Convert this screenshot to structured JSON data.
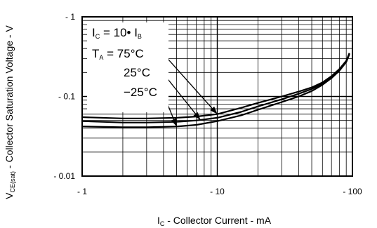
{
  "chart_data": {
    "type": "line",
    "x_scale": "log",
    "y_scale": "log",
    "xlim": [
      -1,
      -100
    ],
    "ylim": [
      -0.01,
      -1
    ],
    "grid": true,
    "x_ticks": [
      {
        "value": -1,
        "label": "- 1"
      },
      {
        "value": -10,
        "label": "- 10"
      },
      {
        "value": -100,
        "label": "- 100"
      }
    ],
    "y_ticks": [
      {
        "value": -1,
        "label": "- 1"
      },
      {
        "value": -0.1,
        "label": "- 0.1"
      },
      {
        "value": -0.01,
        "label": "- 0.01"
      }
    ],
    "xlabel": {
      "pre": "I",
      "sub": "C",
      "post": " - Collector Current - mA"
    },
    "ylabel": {
      "pre": "V",
      "sub": "CE(sat)",
      "post": " - Collector Saturation Voltage - V"
    },
    "annotations": {
      "condition": {
        "pre": "I",
        "sub1": "C",
        "mid": " = 10• I",
        "sub2": "B"
      },
      "ta_prefix": {
        "pre": "T",
        "sub": "A",
        "post": " = "
      }
    },
    "series": [
      {
        "name": "75°C",
        "x": [
          -1,
          -2,
          -3,
          -5,
          -7,
          -10,
          -15,
          -20,
          -30,
          -40,
          -50,
          -60,
          -70,
          -80,
          -90,
          -95
        ],
        "y": [
          -0.055,
          -0.053,
          -0.053,
          -0.054,
          -0.056,
          -0.06,
          -0.072,
          -0.083,
          -0.1,
          -0.115,
          -0.13,
          -0.15,
          -0.18,
          -0.22,
          -0.28,
          -0.35
        ]
      },
      {
        "name": "25°C",
        "x": [
          -1,
          -2,
          -3,
          -5,
          -7,
          -10,
          -15,
          -20,
          -30,
          -40,
          -50,
          -60,
          -70,
          -80,
          -90,
          -95
        ],
        "y": [
          -0.049,
          -0.047,
          -0.047,
          -0.048,
          -0.05,
          -0.054,
          -0.064,
          -0.075,
          -0.092,
          -0.108,
          -0.124,
          -0.145,
          -0.175,
          -0.215,
          -0.275,
          -0.345
        ]
      },
      {
        "name": "−25°C",
        "x": [
          -1,
          -2,
          -3,
          -5,
          -7,
          -10,
          -15,
          -20,
          -30,
          -40,
          -50,
          -60,
          -70,
          -80,
          -90,
          -95
        ],
        "y": [
          -0.042,
          -0.041,
          -0.041,
          -0.042,
          -0.044,
          -0.049,
          -0.058,
          -0.068,
          -0.085,
          -0.1,
          -0.117,
          -0.14,
          -0.17,
          -0.21,
          -0.27,
          -0.34
        ]
      }
    ]
  }
}
